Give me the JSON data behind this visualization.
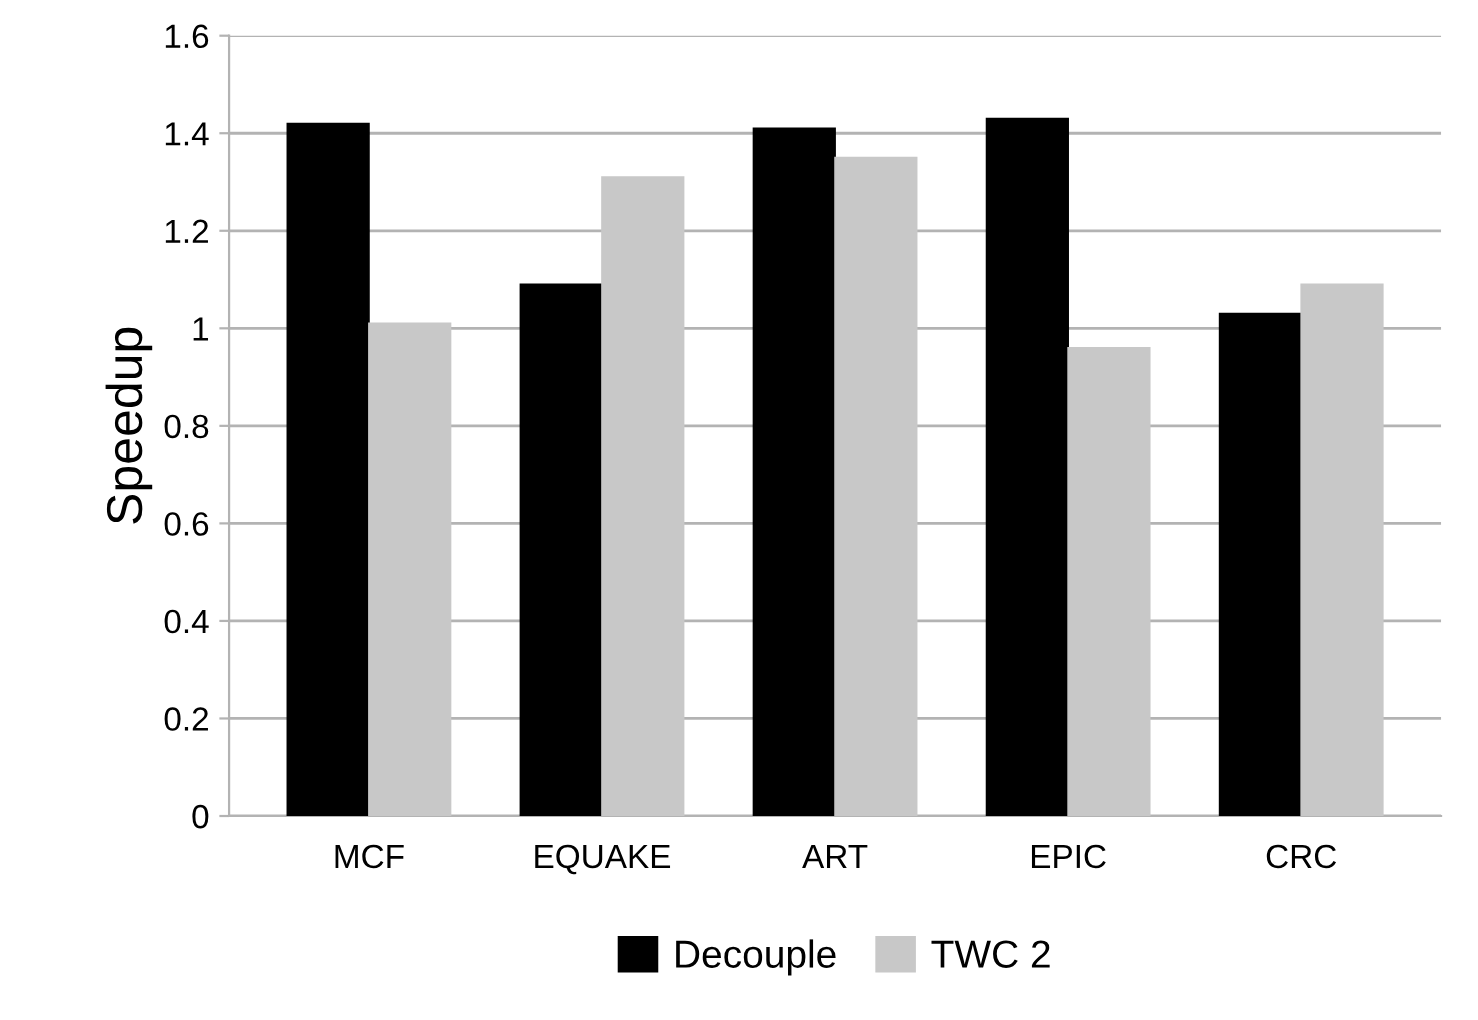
{
  "chart_data": {
    "type": "bar",
    "ylabel": "Speedup",
    "categories": [
      "MCF",
      "EQUAKE",
      "ART",
      "EPIC",
      "CRC"
    ],
    "series": [
      {
        "name": "Decouple",
        "color": "#000000",
        "values": [
          1.42,
          1.09,
          1.41,
          1.43,
          1.03
        ]
      },
      {
        "name": "TWC 2",
        "color": "#c8c8c8",
        "values": [
          1.01,
          1.31,
          1.35,
          0.96,
          1.09
        ]
      }
    ],
    "ylim": [
      0,
      1.6
    ],
    "yticks": [
      0,
      0.2,
      0.4,
      0.6,
      0.8,
      1,
      1.2,
      1.4,
      1.6
    ],
    "grid": "y",
    "legend": "bottom"
  }
}
